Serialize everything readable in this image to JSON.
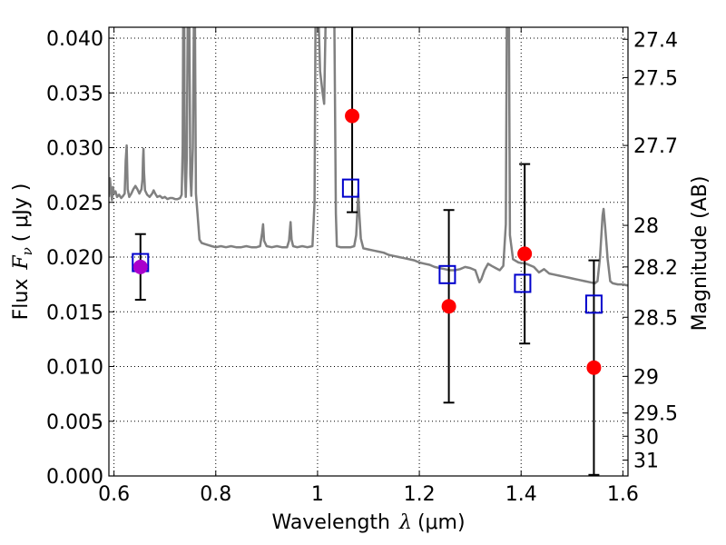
{
  "chart_data": {
    "type": "scatter",
    "xlabel_text": "Wavelength",
    "xlabel_symbol": "λ",
    "xlabel_unit": "(μm)",
    "ylabel_text": "Flux",
    "ylabel_symbol": "F",
    "ylabel_sub": "ν",
    "ylabel_unit": "( μJy )",
    "y2label": "Magnitude (AB)",
    "xlim": [
      0.59,
      1.61
    ],
    "ylim": [
      0.0,
      0.041
    ],
    "grid": true,
    "x_ticks": [
      {
        "value": 0.6,
        "label": "0.6"
      },
      {
        "value": 0.8,
        "label": "0.8"
      },
      {
        "value": 1.0,
        "label": "1"
      },
      {
        "value": 1.2,
        "label": "1.2"
      },
      {
        "value": 1.4,
        "label": "1.4"
      },
      {
        "value": 1.6,
        "label": "1.6"
      }
    ],
    "y_ticks": [
      {
        "value": 0.0,
        "label": "0.000"
      },
      {
        "value": 0.005,
        "label": "0.005"
      },
      {
        "value": 0.01,
        "label": "0.010"
      },
      {
        "value": 0.015,
        "label": "0.015"
      },
      {
        "value": 0.02,
        "label": "0.020"
      },
      {
        "value": 0.025,
        "label": "0.025"
      },
      {
        "value": 0.03,
        "label": "0.030"
      },
      {
        "value": 0.035,
        "label": "0.035"
      },
      {
        "value": 0.04,
        "label": "0.040"
      }
    ],
    "y2_ticks": [
      {
        "flux": 0.0399,
        "label": "27.4"
      },
      {
        "flux": 0.0364,
        "label": "27.5"
      },
      {
        "flux": 0.0302,
        "label": "27.7"
      },
      {
        "flux": 0.0229,
        "label": "28"
      },
      {
        "flux": 0.0191,
        "label": "28.2"
      },
      {
        "flux": 0.0145,
        "label": "28.5"
      },
      {
        "flux": 0.0091,
        "label": "29"
      },
      {
        "flux": 0.00575,
        "label": "29.5"
      },
      {
        "flux": 0.00363,
        "label": "30"
      },
      {
        "flux": 0.00145,
        "label": "31"
      }
    ],
    "colors": {
      "spectrum": "#808080",
      "observed": "#ff0000",
      "model": "#0000cc",
      "first_point": "#aa00cc",
      "errorbar": "#000000"
    },
    "model_series": {
      "marker": "open-square",
      "points": [
        {
          "x": 0.652,
          "y": 0.0195
        },
        {
          "x": 1.065,
          "y": 0.0263
        },
        {
          "x": 1.255,
          "y": 0.0184
        },
        {
          "x": 1.403,
          "y": 0.0176
        },
        {
          "x": 1.543,
          "y": 0.0157
        }
      ]
    },
    "observed_series": {
      "marker": "filled-circle",
      "points": [
        {
          "x": 0.652,
          "y": 0.0191,
          "ylo": 0.0161,
          "yhi": 0.0221
        },
        {
          "x": 1.068,
          "y": 0.0329,
          "ylo": 0.0241,
          "yhi": 0.0417
        },
        {
          "x": 1.258,
          "y": 0.0155,
          "ylo": 0.0067,
          "yhi": 0.0243
        },
        {
          "x": 1.407,
          "y": 0.0203,
          "ylo": 0.0121,
          "yhi": 0.0285
        },
        {
          "x": 1.543,
          "y": 0.0099,
          "ylo": 0.0001,
          "yhi": 0.0197
        }
      ]
    },
    "spectrum": [
      [
        0.59,
        0.0255
      ],
      [
        0.592,
        0.0272
      ],
      [
        0.594,
        0.0262
      ],
      [
        0.596,
        0.0252
      ],
      [
        0.598,
        0.0264
      ],
      [
        0.6,
        0.0258
      ],
      [
        0.603,
        0.026
      ],
      [
        0.606,
        0.0255
      ],
      [
        0.61,
        0.0257
      ],
      [
        0.614,
        0.0254
      ],
      [
        0.618,
        0.0256
      ],
      [
        0.621,
        0.0258
      ],
      [
        0.623,
        0.0288
      ],
      [
        0.625,
        0.0302
      ],
      [
        0.627,
        0.0262
      ],
      [
        0.63,
        0.0255
      ],
      [
        0.634,
        0.0258
      ],
      [
        0.638,
        0.0262
      ],
      [
        0.642,
        0.0265
      ],
      [
        0.646,
        0.0262
      ],
      [
        0.65,
        0.0258
      ],
      [
        0.654,
        0.0262
      ],
      [
        0.656,
        0.0271
      ],
      [
        0.657,
        0.029
      ],
      [
        0.658,
        0.0299
      ],
      [
        0.659,
        0.0278
      ],
      [
        0.661,
        0.0261
      ],
      [
        0.665,
        0.0257
      ],
      [
        0.67,
        0.0255
      ],
      [
        0.675,
        0.0258
      ],
      [
        0.678,
        0.0261
      ],
      [
        0.681,
        0.0258
      ],
      [
        0.685,
        0.0255
      ],
      [
        0.69,
        0.0256
      ],
      [
        0.695,
        0.0254
      ],
      [
        0.7,
        0.0255
      ],
      [
        0.705,
        0.0253
      ],
      [
        0.71,
        0.0254
      ],
      [
        0.715,
        0.0254
      ],
      [
        0.72,
        0.0253
      ],
      [
        0.725,
        0.0253
      ],
      [
        0.73,
        0.0254
      ],
      [
        0.733,
        0.0257
      ],
      [
        0.735,
        0.03
      ],
      [
        0.736,
        0.042
      ],
      [
        0.738,
        0.042
      ],
      [
        0.739,
        0.028
      ],
      [
        0.741,
        0.0255
      ],
      [
        0.743,
        0.029
      ],
      [
        0.745,
        0.042
      ],
      [
        0.748,
        0.042
      ],
      [
        0.75,
        0.0275
      ],
      [
        0.752,
        0.0256
      ],
      [
        0.755,
        0.03
      ],
      [
        0.757,
        0.042
      ],
      [
        0.759,
        0.042
      ],
      [
        0.761,
        0.0258
      ],
      [
        0.764,
        0.024
      ],
      [
        0.768,
        0.0216
      ],
      [
        0.772,
        0.0213
      ],
      [
        0.778,
        0.0212
      ],
      [
        0.785,
        0.0211
      ],
      [
        0.792,
        0.021
      ],
      [
        0.8,
        0.0209
      ],
      [
        0.81,
        0.021
      ],
      [
        0.82,
        0.0209
      ],
      [
        0.83,
        0.021
      ],
      [
        0.84,
        0.0209
      ],
      [
        0.85,
        0.0209
      ],
      [
        0.86,
        0.021
      ],
      [
        0.87,
        0.0209
      ],
      [
        0.88,
        0.0209
      ],
      [
        0.887,
        0.021
      ],
      [
        0.891,
        0.0222
      ],
      [
        0.893,
        0.023
      ],
      [
        0.895,
        0.0215
      ],
      [
        0.9,
        0.021
      ],
      [
        0.91,
        0.0209
      ],
      [
        0.92,
        0.021
      ],
      [
        0.93,
        0.0209
      ],
      [
        0.94,
        0.0209
      ],
      [
        0.944,
        0.0215
      ],
      [
        0.947,
        0.0232
      ],
      [
        0.949,
        0.0216
      ],
      [
        0.952,
        0.021
      ],
      [
        0.96,
        0.0209
      ],
      [
        0.97,
        0.021
      ],
      [
        0.98,
        0.0209
      ],
      [
        0.99,
        0.021
      ],
      [
        0.994,
        0.025
      ],
      [
        0.996,
        0.042
      ],
      [
        1.002,
        0.042
      ],
      [
        1.005,
        0.037
      ],
      [
        1.01,
        0.035
      ],
      [
        1.013,
        0.034
      ],
      [
        1.016,
        0.042
      ],
      [
        1.033,
        0.042
      ],
      [
        1.036,
        0.024
      ],
      [
        1.038,
        0.021
      ],
      [
        1.045,
        0.0209
      ],
      [
        1.055,
        0.0209
      ],
      [
        1.065,
        0.0209
      ],
      [
        1.072,
        0.021
      ],
      [
        1.076,
        0.022
      ],
      [
        1.08,
        0.0258
      ],
      [
        1.082,
        0.024
      ],
      [
        1.085,
        0.0217
      ],
      [
        1.09,
        0.0208
      ],
      [
        1.1,
        0.0207
      ],
      [
        1.11,
        0.0206
      ],
      [
        1.12,
        0.0205
      ],
      [
        1.13,
        0.0204
      ],
      [
        1.14,
        0.0202
      ],
      [
        1.15,
        0.0201
      ],
      [
        1.16,
        0.02
      ],
      [
        1.17,
        0.0199
      ],
      [
        1.18,
        0.0198
      ],
      [
        1.19,
        0.0197
      ],
      [
        1.2,
        0.0195
      ],
      [
        1.21,
        0.0194
      ],
      [
        1.22,
        0.0193
      ],
      [
        1.23,
        0.0191
      ],
      [
        1.24,
        0.019
      ],
      [
        1.25,
        0.0189
      ],
      [
        1.26,
        0.0188
      ],
      [
        1.27,
        0.0188
      ],
      [
        1.28,
        0.0189
      ],
      [
        1.29,
        0.0191
      ],
      [
        1.3,
        0.019
      ],
      [
        1.31,
        0.0188
      ],
      [
        1.318,
        0.0177
      ],
      [
        1.322,
        0.018
      ],
      [
        1.328,
        0.0188
      ],
      [
        1.335,
        0.0194
      ],
      [
        1.342,
        0.0192
      ],
      [
        1.35,
        0.019
      ],
      [
        1.358,
        0.0188
      ],
      [
        1.365,
        0.0192
      ],
      [
        1.37,
        0.023
      ],
      [
        1.372,
        0.042
      ],
      [
        1.376,
        0.042
      ],
      [
        1.378,
        0.022
      ],
      [
        1.384,
        0.0198
      ],
      [
        1.395,
        0.0195
      ],
      [
        1.41,
        0.0194
      ],
      [
        1.425,
        0.0191
      ],
      [
        1.435,
        0.0186
      ],
      [
        1.445,
        0.0189
      ],
      [
        1.455,
        0.0185
      ],
      [
        1.465,
        0.0184
      ],
      [
        1.475,
        0.0183
      ],
      [
        1.485,
        0.0182
      ],
      [
        1.495,
        0.0181
      ],
      [
        1.505,
        0.018
      ],
      [
        1.515,
        0.0179
      ],
      [
        1.525,
        0.0178
      ],
      [
        1.535,
        0.0177
      ],
      [
        1.545,
        0.0176
      ],
      [
        1.55,
        0.0178
      ],
      [
        1.555,
        0.02
      ],
      [
        1.56,
        0.0238
      ],
      [
        1.562,
        0.0244
      ],
      [
        1.565,
        0.0228
      ],
      [
        1.57,
        0.0198
      ],
      [
        1.575,
        0.0178
      ],
      [
        1.58,
        0.0176
      ],
      [
        1.59,
        0.0175
      ],
      [
        1.6,
        0.0175
      ],
      [
        1.61,
        0.0174
      ]
    ]
  }
}
